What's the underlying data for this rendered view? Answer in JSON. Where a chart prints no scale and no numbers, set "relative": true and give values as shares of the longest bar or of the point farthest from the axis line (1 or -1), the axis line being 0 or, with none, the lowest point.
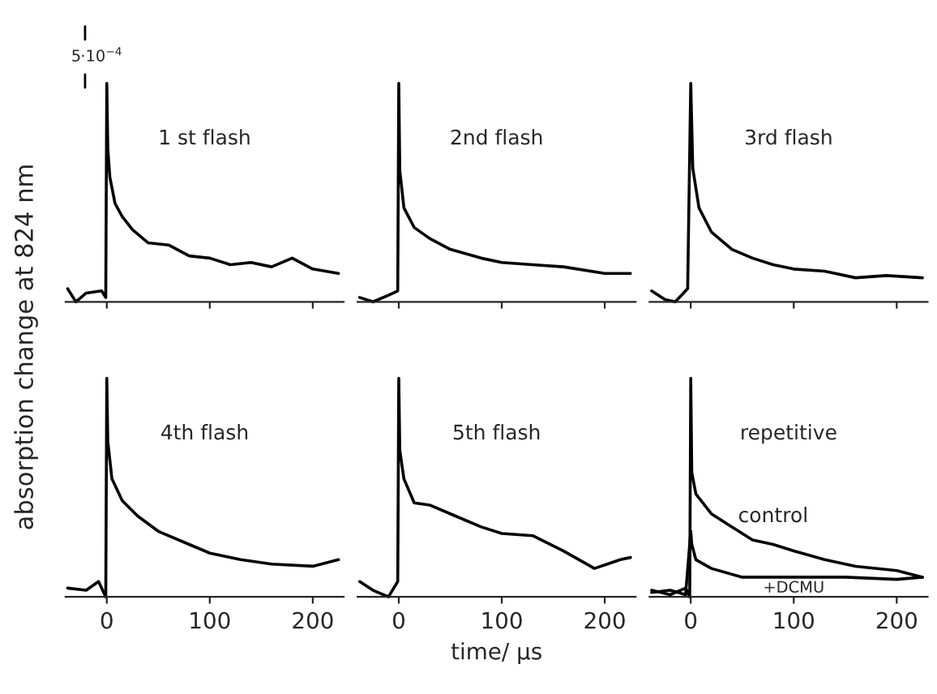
{
  "chart_data": [
    {
      "type": "line",
      "relative": true,
      "title": "1 st flash",
      "ylabel": "absorption change at 824 nm",
      "annotations": [
        "5·10$^{−4}$"
      ],
      "xlim": [
        -40,
        230
      ],
      "xticks": [
        0,
        100,
        200
      ],
      "tick_labels": false,
      "series": [
        {
          "color": "#000000",
          "x": [
            -38,
            -30,
            -20,
            -5,
            -1,
            0,
            1,
            3,
            8,
            15,
            25,
            40,
            60,
            80,
            100,
            120,
            140,
            160,
            180,
            200,
            225
          ],
          "values": [
            0.06,
            0,
            0.04,
            0.05,
            0.02,
            1.0,
            0.7,
            0.57,
            0.45,
            0.39,
            0.33,
            0.27,
            0.26,
            0.21,
            0.2,
            0.17,
            0.18,
            0.16,
            0.2,
            0.15,
            0.13
          ]
        }
      ]
    },
    {
      "type": "line",
      "relative": true,
      "title": "2nd flash",
      "xlim": [
        -40,
        230
      ],
      "xticks": [
        0,
        100,
        200
      ],
      "tick_labels": false,
      "series": [
        {
          "color": "#000000",
          "x": [
            -38,
            -25,
            -10,
            -1,
            0,
            1,
            5,
            15,
            30,
            50,
            80,
            100,
            130,
            160,
            200,
            225
          ],
          "values": [
            0.02,
            0,
            0.03,
            0.05,
            1,
            0.6,
            0.43,
            0.34,
            0.29,
            0.24,
            0.2,
            0.18,
            0.17,
            0.16,
            0.13,
            0.13
          ]
        }
      ]
    },
    {
      "type": "line",
      "relative": true,
      "title": "3rd flash",
      "xlim": [
        -40,
        230
      ],
      "xticks": [
        0,
        100,
        200
      ],
      "tick_labels": false,
      "series": [
        {
          "color": "#000000",
          "x": [
            -38,
            -25,
            -15,
            -3,
            0,
            2,
            8,
            20,
            40,
            60,
            80,
            100,
            130,
            160,
            190,
            225
          ],
          "values": [
            0.05,
            0.01,
            0,
            0.06,
            1,
            0.61,
            0.43,
            0.32,
            0.24,
            0.2,
            0.17,
            0.15,
            0.14,
            0.11,
            0.12,
            0.11
          ]
        }
      ]
    },
    {
      "type": "line",
      "relative": true,
      "title": "4th flash",
      "xlim": [
        -40,
        230
      ],
      "xticks": [
        0,
        100,
        200
      ],
      "tick_labels": "x",
      "series": [
        {
          "color": "#000000",
          "x": [
            -38,
            -20,
            -8,
            -1,
            0,
            1,
            5,
            15,
            30,
            50,
            80,
            100,
            130,
            160,
            200,
            225
          ],
          "values": [
            0.04,
            0.03,
            0.07,
            0,
            1,
            0.71,
            0.54,
            0.44,
            0.37,
            0.3,
            0.24,
            0.2,
            0.17,
            0.15,
            0.14,
            0.17
          ]
        }
      ]
    },
    {
      "type": "line",
      "relative": true,
      "title": "5th flash",
      "xlabel": "time/ µs",
      "xlim": [
        -40,
        230
      ],
      "xticks": [
        0,
        100,
        200
      ],
      "tick_labels": "x",
      "series": [
        {
          "color": "#000000",
          "x": [
            -38,
            -25,
            -10,
            -1,
            0,
            1,
            5,
            15,
            30,
            50,
            80,
            100,
            130,
            160,
            190,
            215,
            225
          ],
          "values": [
            0.07,
            0.03,
            0,
            0.07,
            1,
            0.67,
            0.54,
            0.43,
            0.42,
            0.38,
            0.32,
            0.29,
            0.28,
            0.21,
            0.13,
            0.17,
            0.18
          ]
        }
      ]
    },
    {
      "type": "line",
      "relative": true,
      "title": "repetitive",
      "xlim": [
        -40,
        230
      ],
      "xticks": [
        0,
        100,
        200
      ],
      "tick_labels": "x",
      "series": [
        {
          "name": "control",
          "color": "#000000",
          "x": [
            -38,
            -20,
            -5,
            -1,
            0,
            1,
            5,
            20,
            40,
            60,
            80,
            100,
            130,
            160,
            200,
            225
          ],
          "values": [
            0.03,
            0.01,
            0.04,
            0,
            1,
            0.57,
            0.47,
            0.38,
            0.32,
            0.26,
            0.24,
            0.21,
            0.17,
            0.14,
            0.12,
            0.09
          ]
        },
        {
          "name": "+DCMU",
          "color": "#000000",
          "x": [
            -38,
            -20,
            -5,
            0,
            1,
            5,
            20,
            50,
            100,
            150,
            200,
            225
          ],
          "values": [
            0.02,
            0.03,
            0.01,
            0.3,
            0.24,
            0.17,
            0.13,
            0.09,
            0.09,
            0.09,
            0.08,
            0.09
          ]
        }
      ]
    }
  ]
}
